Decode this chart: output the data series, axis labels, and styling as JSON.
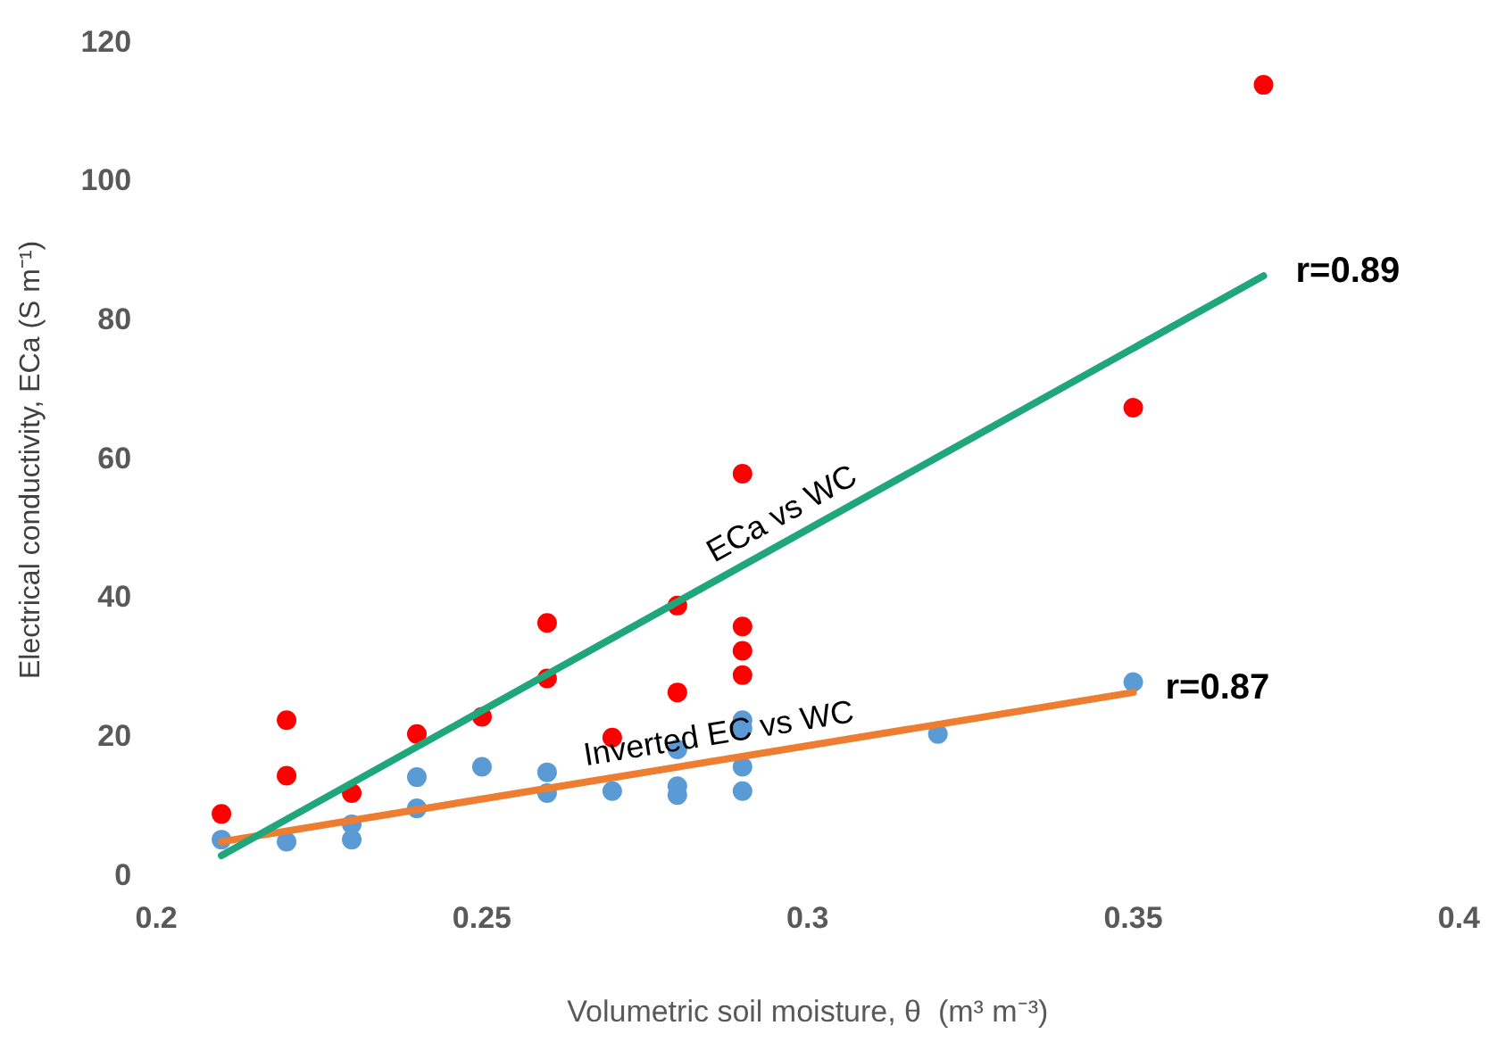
{
  "chart_data": {
    "type": "scatter",
    "xlabel": "Volumetric soil moisture, θ  (m³ m⁻³)",
    "ylabel": "Electrical conductivity, ECa (S m⁻¹)",
    "xlim": [
      0.2,
      0.4
    ],
    "xticks": [
      0.2,
      0.25,
      0.3,
      0.35,
      0.4
    ],
    "ylim": [
      0,
      120
    ],
    "yticks": [
      0,
      20,
      40,
      60,
      80,
      100,
      120
    ],
    "grid": false,
    "legend": false,
    "marker": "circle",
    "series": [
      {
        "color": "#ff0000",
        "x": [
          0.21,
          0.22,
          0.22,
          0.23,
          0.24,
          0.25,
          0.26,
          0.26,
          0.27,
          0.28,
          0.28,
          0.29,
          0.29,
          0.29,
          0.29,
          0.35,
          0.37
        ],
        "values": [
          9,
          22.5,
          14.5,
          12,
          20.5,
          23,
          36.5,
          28.5,
          20,
          39,
          26.5,
          58,
          36,
          32.5,
          29,
          67.5,
          114
        ]
      },
      {
        "color": "#5b9bd5",
        "x": [
          0.21,
          0.22,
          0.23,
          0.23,
          0.24,
          0.24,
          0.25,
          0.26,
          0.26,
          0.27,
          0.28,
          0.28,
          0.28,
          0.29,
          0.29,
          0.29,
          0.29,
          0.32,
          0.35
        ],
        "values": [
          5.3,
          5,
          7.5,
          5.3,
          14.3,
          9.8,
          15.8,
          15,
          12,
          12.3,
          18.3,
          13,
          11.7,
          22.5,
          21.3,
          15.8,
          12.3,
          20.5,
          28
        ]
      },
      {
        "type": "line",
        "name": "ECa vs WC",
        "color": "#1fa67a",
        "x": [
          0.21,
          0.37
        ],
        "values": [
          3,
          86.5
        ],
        "marker": "none"
      },
      {
        "type": "line",
        "name": "Inverted EC vs WC",
        "color": "#ed7d31",
        "x": [
          0.21,
          0.35
        ],
        "values": [
          5,
          26.5
        ],
        "marker": "none"
      }
    ],
    "annotations": [
      {
        "text": "r=0.89",
        "x": 0.37,
        "y": 86.5
      },
      {
        "text": "r=0.87",
        "x": 0.35,
        "y": 26.5
      }
    ]
  }
}
